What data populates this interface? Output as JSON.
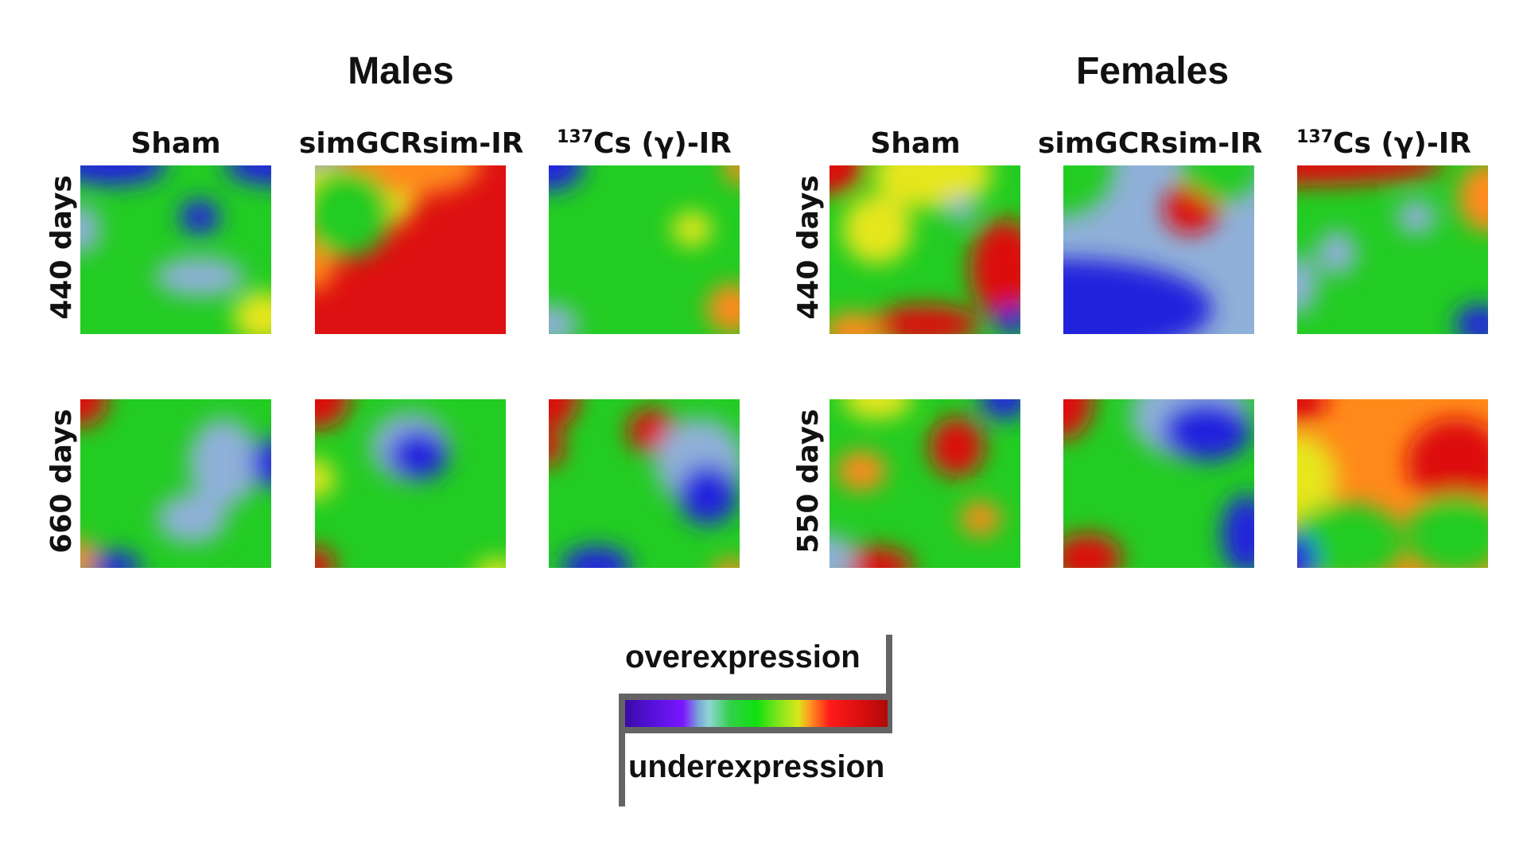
{
  "groups": {
    "males": "Males",
    "females": "Females"
  },
  "columns": {
    "sham": "Sham",
    "simgcr": "simGCRsim-IR",
    "cs_superscript": "137",
    "cs_text": "Cs (γ)-IR"
  },
  "rows": {
    "males_top": "440 days",
    "males_bottom": "660 days",
    "females_top": "440 days",
    "females_bottom": "550 days"
  },
  "legend": {
    "over": "overexpression",
    "under": "underexpression"
  },
  "colors": {
    "base": "#22cc22",
    "blue": "#2222dd",
    "light_blue": "#8fb0d8",
    "yellow": "#e6e61a",
    "orange": "#ff8a1a",
    "red": "#dd1111",
    "frame": "#646464"
  }
}
